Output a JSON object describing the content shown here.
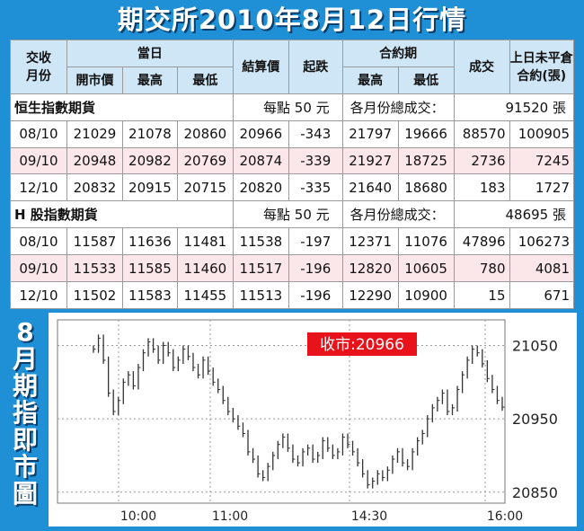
{
  "title": "期交所2010年8月12日行情",
  "table": {
    "headers": {
      "contract_month": [
        "交收",
        "月份"
      ],
      "today": "當日",
      "open": "開市價",
      "high": "最高",
      "low": "最低",
      "settle": "結算價",
      "change": "起跌",
      "contract_period": "合約期",
      "cp_high": "最高",
      "cp_low": "最低",
      "volume": "成交",
      "prev_oi": [
        "上日未平倉",
        "合約(張)"
      ]
    },
    "sections": [
      {
        "name": "恒生指數期貨",
        "unit": "每點 50 元",
        "total_label": "各月份總成交：",
        "total_value": "91520 張",
        "rows": [
          {
            "month": "08/10",
            "open": "21029",
            "high": "21078",
            "low": "20860",
            "settle": "20966",
            "change": "-343",
            "cp_high": "21797",
            "cp_low": "19666",
            "volume": "88570",
            "oi": "100905"
          },
          {
            "month": "09/10",
            "open": "20948",
            "high": "20982",
            "low": "20769",
            "settle": "20874",
            "change": "-339",
            "cp_high": "21927",
            "cp_low": "18725",
            "volume": "2736",
            "oi": "7245"
          },
          {
            "month": "12/10",
            "open": "20832",
            "high": "20915",
            "low": "20715",
            "settle": "20820",
            "change": "-335",
            "cp_high": "21640",
            "cp_low": "18680",
            "volume": "183",
            "oi": "1727"
          }
        ]
      },
      {
        "name": "H 股指數期貨",
        "unit": "每點 50 元",
        "total_label": "各月份總成交：",
        "total_value": "48695 張",
        "rows": [
          {
            "month": "08/10",
            "open": "11587",
            "high": "11636",
            "low": "11481",
            "settle": "11538",
            "change": "-197",
            "cp_high": "12371",
            "cp_low": "11076",
            "volume": "47896",
            "oi": "106273"
          },
          {
            "month": "09/10",
            "open": "11533",
            "high": "11585",
            "low": "11460",
            "settle": "11517",
            "change": "-196",
            "cp_high": "12820",
            "cp_low": "10605",
            "volume": "780",
            "oi": "4081"
          },
          {
            "month": "12/10",
            "open": "11502",
            "high": "11583",
            "low": "11455",
            "settle": "11513",
            "change": "-196",
            "cp_high": "12290",
            "cp_low": "10900",
            "volume": "15",
            "oi": "671"
          }
        ]
      }
    ]
  },
  "chart_label": [
    "8",
    "月",
    "期",
    "指",
    "即",
    "市",
    "圖"
  ],
  "colors": {
    "background": "#1f8fd6",
    "header": "#cfe6f6",
    "alt_row": "#fbe6ea",
    "close_badge": "#e8121a",
    "bars": "#333333"
  },
  "chart_data": {
    "type": "line",
    "title": "",
    "close_label": "收市:20966",
    "xlabel": "",
    "ylabel": "",
    "x_ticks": [
      "10:00",
      "11:00",
      "14:30",
      "16:00"
    ],
    "y_ticks": [
      21050,
      20950,
      20850
    ],
    "ylim": [
      20835,
      21085
    ],
    "grid": true,
    "series": [
      {
        "values": [
          21045,
          21060,
          21030,
          20985,
          20960,
          20975,
          21000,
          21010,
          20995,
          21020,
          21040,
          21055,
          21045,
          21030,
          21050,
          21040,
          21020,
          21030,
          21045,
          21035,
          21020,
          21010,
          21030,
          21015,
          21000,
          20990,
          20975,
          20960,
          20950,
          20940,
          20930,
          20905,
          20895,
          20875,
          20870,
          20885,
          20900,
          20915,
          20925,
          20910,
          20895,
          20890,
          20905,
          20910,
          20895,
          20900,
          20920,
          20910,
          20900,
          20905,
          20925,
          20915,
          20905,
          20890,
          20875,
          20860,
          20865,
          20875,
          20870,
          20880,
          20895,
          20905,
          20890,
          20885,
          20905,
          20920,
          20930,
          20950,
          20965,
          20975,
          20985,
          20960,
          20965,
          20990,
          21010,
          21030,
          21045,
          21040,
          21025,
          21005,
          20990,
          20975,
          20966
        ]
      }
    ]
  }
}
